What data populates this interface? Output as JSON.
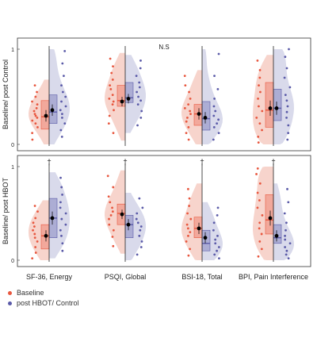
{
  "colors": {
    "baseline": "#e8573f",
    "post": "#5a5aa8",
    "baseline_fill": "#f3c2b6",
    "post_fill": "#c9cae3"
  },
  "legend": {
    "baseline_label": "Baseline",
    "post_label": "post HBOT/ Control"
  },
  "chart_data": {
    "type": "raincloud",
    "categories": [
      "SF-36, Energy",
      "PSQI, Global",
      "BSI-18, Total",
      "BPI, Pain Interference"
    ],
    "rows": [
      {
        "ylabel": "Baseline/ post Control",
        "annotation": "N.S",
        "ylim": [
          0,
          1
        ],
        "yticks": [
          "0",
          "1"
        ],
        "panels": [
          {
            "markers": [],
            "baseline": {
              "q1": 0.16,
              "median": 0.29,
              "q3": 0.46,
              "mean": 0.3,
              "mean_sd_low": 0.24,
              "mean_sd_high": 0.36,
              "dots": [
                0.05,
                0.12,
                0.18,
                0.22,
                0.25,
                0.28,
                0.3,
                0.32,
                0.35,
                0.38,
                0.42,
                0.45,
                0.5,
                0.55,
                0.62
              ]
            },
            "post": {
              "q1": 0.22,
              "median": 0.34,
              "q3": 0.52,
              "mean": 0.36,
              "mean_sd_low": 0.3,
              "mean_sd_high": 0.42,
              "dots": [
                0.08,
                0.15,
                0.22,
                0.28,
                0.32,
                0.36,
                0.4,
                0.45,
                0.5,
                0.55,
                0.62,
                0.72,
                0.85,
                0.98
              ]
            }
          },
          {
            "markers": [],
            "baseline": {
              "q1": 0.4,
              "median": 0.46,
              "q3": 0.62,
              "mean": 0.45,
              "mean_sd_low": 0.4,
              "mean_sd_high": 0.5,
              "dots": [
                0.12,
                0.22,
                0.3,
                0.36,
                0.42,
                0.45,
                0.48,
                0.52,
                0.58,
                0.62,
                0.68,
                0.75,
                0.82,
                0.9
              ]
            },
            "post": {
              "q1": 0.44,
              "median": 0.49,
              "q3": 0.65,
              "mean": 0.48,
              "mean_sd_low": 0.43,
              "mean_sd_high": 0.53,
              "dots": [
                0.2,
                0.28,
                0.35,
                0.42,
                0.46,
                0.5,
                0.55,
                0.6,
                0.65,
                0.72,
                0.8,
                0.88
              ]
            }
          },
          {
            "markers": [],
            "baseline": {
              "q1": 0.2,
              "median": 0.32,
              "q3": 0.42,
              "mean": 0.32,
              "mean_sd_low": 0.26,
              "mean_sd_high": 0.38,
              "dots": [
                0.05,
                0.12,
                0.18,
                0.24,
                0.28,
                0.32,
                0.35,
                0.38,
                0.42,
                0.48,
                0.55,
                0.62,
                0.72
              ]
            },
            "post": {
              "q1": 0.15,
              "median": 0.27,
              "q3": 0.45,
              "mean": 0.28,
              "mean_sd_low": 0.22,
              "mean_sd_high": 0.34,
              "dots": [
                0.05,
                0.12,
                0.18,
                0.22,
                0.26,
                0.3,
                0.35,
                0.4,
                0.48,
                0.58,
                0.72,
                0.95
              ]
            }
          },
          {
            "markers": [],
            "baseline": {
              "q1": 0.18,
              "median": 0.36,
              "q3": 0.65,
              "mean": 0.38,
              "mean_sd_low": 0.3,
              "mean_sd_high": 0.46,
              "dots": [
                0.02,
                0.08,
                0.15,
                0.22,
                0.28,
                0.35,
                0.4,
                0.48,
                0.55,
                0.62,
                0.7,
                0.78,
                0.88
              ]
            },
            "post": {
              "q1": 0.25,
              "median": 0.38,
              "q3": 0.58,
              "mean": 0.38,
              "mean_sd_low": 0.31,
              "mean_sd_high": 0.45,
              "dots": [
                0.05,
                0.12,
                0.2,
                0.28,
                0.34,
                0.4,
                0.46,
                0.52,
                0.6,
                0.7,
                0.8,
                0.92,
                1.0
              ]
            }
          }
        ]
      },
      {
        "ylabel": "Baseline/ post HBOT",
        "annotation": "",
        "ylim": [
          0,
          1
        ],
        "yticks": [
          "0",
          "1"
        ],
        "panels": [
          {
            "markers": [
              "†"
            ],
            "baseline": {
              "q1": 0.12,
              "median": 0.26,
              "q3": 0.38,
              "mean": 0.26,
              "mean_sd_low": 0.2,
              "mean_sd_high": 0.32,
              "dots": [
                0.02,
                0.08,
                0.14,
                0.2,
                0.24,
                0.28,
                0.32,
                0.36,
                0.4,
                0.45,
                0.52,
                0.58
              ]
            },
            "post": {
              "q1": 0.24,
              "median": 0.45,
              "q3": 0.66,
              "mean": 0.45,
              "mean_sd_low": 0.38,
              "mean_sd_high": 0.52,
              "dots": [
                0.1,
                0.18,
                0.26,
                0.32,
                0.38,
                0.44,
                0.5,
                0.56,
                0.62,
                0.7,
                0.78,
                0.88
              ]
            }
          },
          {
            "markers": [
              "†"
            ],
            "baseline": {
              "q1": 0.38,
              "median": 0.5,
              "q3": 0.6,
              "mean": 0.49,
              "mean_sd_low": 0.44,
              "mean_sd_high": 0.54,
              "dots": [
                0.15,
                0.25,
                0.32,
                0.38,
                0.44,
                0.48,
                0.52,
                0.56,
                0.62,
                0.68,
                0.78,
                0.9
              ]
            },
            "post": {
              "q1": 0.24,
              "median": 0.38,
              "q3": 0.48,
              "mean": 0.38,
              "mean_sd_low": 0.32,
              "mean_sd_high": 0.44,
              "dots": [
                0.06,
                0.14,
                0.2,
                0.26,
                0.32,
                0.36,
                0.4,
                0.44,
                0.5,
                0.56,
                0.66
              ]
            }
          },
          {
            "markers": [
              "†"
            ],
            "baseline": {
              "q1": 0.24,
              "median": 0.34,
              "q3": 0.46,
              "mean": 0.34,
              "mean_sd_low": 0.28,
              "mean_sd_high": 0.4,
              "dots": [
                0.05,
                0.12,
                0.2,
                0.26,
                0.3,
                0.34,
                0.38,
                0.44,
                0.5,
                0.58,
                0.66,
                0.76
              ]
            },
            "post": {
              "q1": 0.1,
              "median": 0.18,
              "q3": 0.32,
              "mean": 0.24,
              "mean_sd_low": 0.18,
              "mean_sd_high": 0.3,
              "dots": [
                0.02,
                0.06,
                0.1,
                0.14,
                0.18,
                0.22,
                0.26,
                0.32,
                0.4,
                0.48,
                0.56
              ]
            }
          },
          {
            "markers": [
              "†"
            ],
            "baseline": {
              "q1": 0.28,
              "median": 0.43,
              "q3": 0.7,
              "mean": 0.45,
              "mean_sd_low": 0.37,
              "mean_sd_high": 0.53,
              "dots": [
                0.04,
                0.12,
                0.2,
                0.28,
                0.34,
                0.4,
                0.48,
                0.56,
                0.64,
                0.72,
                0.82,
                0.92,
                0.98
              ]
            },
            "post": {
              "q1": 0.18,
              "median": 0.24,
              "q3": 0.38,
              "mean": 0.26,
              "mean_sd_low": 0.2,
              "mean_sd_high": 0.32,
              "dots": [
                0.02,
                0.06,
                0.1,
                0.14,
                0.18,
                0.22,
                0.26,
                0.32,
                0.4,
                0.5,
                0.62,
                0.76
              ]
            }
          }
        ]
      }
    ]
  }
}
